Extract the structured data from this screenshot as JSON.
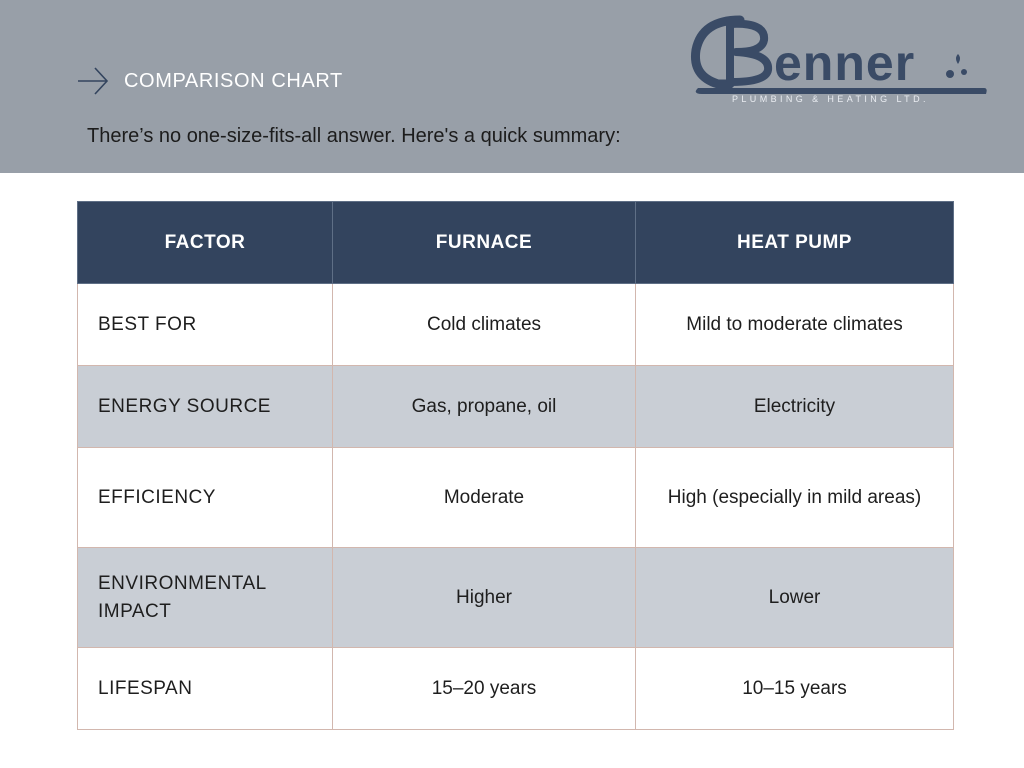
{
  "header": {
    "section_label": "COMPARISON CHART",
    "intro": "There’s no one-size-fits-all answer. Here's a quick summary:",
    "icon": "arrow-right-icon",
    "band_color": "#989fa8"
  },
  "logo": {
    "wordmark": "Benner",
    "tagline": "PLUMBING & HEATING LTD.",
    "color": "#3a4b66"
  },
  "table": {
    "header_color": "#33445e",
    "shaded_row_color": "#c9ced5",
    "columns": [
      "FACTOR",
      "FURNACE",
      "HEAT PUMP"
    ],
    "rows": [
      {
        "factor": "BEST FOR",
        "furnace": "Cold climates",
        "heat_pump": "Mild to moderate climates"
      },
      {
        "factor": "ENERGY SOURCE",
        "furnace": "Gas, propane, oil",
        "heat_pump": "Electricity"
      },
      {
        "factor": "EFFICIENCY",
        "furnace": "Moderate",
        "heat_pump": "High (especially in mild areas)"
      },
      {
        "factor": "ENVIRONMENTAL IMPACT",
        "furnace": "Higher",
        "heat_pump": "Lower"
      },
      {
        "factor": "LIFESPAN",
        "furnace": "15–20 years",
        "heat_pump": "10–15 years"
      }
    ]
  }
}
